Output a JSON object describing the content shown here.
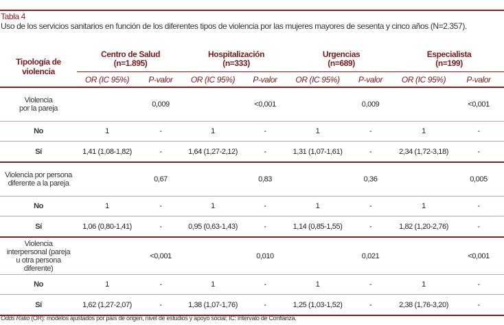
{
  "caption": {
    "label": "Tabla 4",
    "title": "Uso de los servicios sanitarios en función de los diferentes tipos de violencia por las mujeres mayores de sesenta y cinco años (N=2.357)."
  },
  "header": {
    "row_label": "Tipología de violencia",
    "groups": [
      {
        "name": "Centro de Salud",
        "n": "(n=1.895)"
      },
      {
        "name": "Hospitalización",
        "n": "(n=333)"
      },
      {
        "name": "Urgencias",
        "n": "(n=689)"
      },
      {
        "name": "Especialista",
        "n": "(n=199)"
      }
    ],
    "sub": [
      "OR (IC 95%)",
      "P-valor"
    ]
  },
  "sections": [
    {
      "label": "Violencia por la pareja",
      "pvalues": [
        "0,009",
        "<0,001",
        "0,009",
        "<0,001"
      ],
      "rows": [
        {
          "label": "No",
          "cells": [
            "1",
            "-",
            "1",
            "-",
            "1",
            "-",
            "1",
            "-"
          ]
        },
        {
          "label": "Sí",
          "cells": [
            "1,41 (1,08-1,82)",
            "-",
            "1,64 (1,27-2,12)",
            "-",
            "1,31 (1,07-1,61)",
            "-",
            "2,34 (1,72-3,18)",
            "-"
          ]
        }
      ]
    },
    {
      "label": "Violencia por persona diferente a la pareja",
      "pvalues": [
        "0,67",
        "0,83",
        "0,36",
        "0,005"
      ],
      "rows": [
        {
          "label": "No",
          "cells": [
            "1",
            "-",
            "1",
            "-",
            "1",
            "-",
            "1",
            "-"
          ]
        },
        {
          "label": "Sí",
          "cells": [
            "1,06 (0,80-1,41)",
            "-",
            "0,95 (0,63-1,43)",
            "-",
            "1,14 (0,85-1,55)",
            "-",
            "1,82 (1,20-2,76)",
            "-"
          ]
        }
      ]
    },
    {
      "label": "Violencia interpersonal (pareja u otra persona diferente)",
      "pvalues": [
        "<0,001",
        "0,010",
        "0,021",
        "<0,001"
      ],
      "rows": [
        {
          "label": "No",
          "cells": [
            "1",
            "-",
            "1",
            "-",
            "1",
            "-",
            "1",
            "-"
          ]
        },
        {
          "label": "Sí",
          "cells": [
            "1,62 (1,27-2,07)",
            "-",
            "1,38 (1,07-1,76)",
            "-",
            "1,25 (1,03-1,52)",
            "-",
            "2,38 (1,76-3,20)",
            "-"
          ]
        }
      ]
    }
  ],
  "footnote": {
    "italic": "Odds Ratio",
    "text": " (OR): modelos ajustados por país de origen, nivel de estudios y apoyo social; IC: Intervalo de Confianza."
  },
  "colors": {
    "accent": "#8a1c1f",
    "rule_light": "#c9a3a3"
  }
}
